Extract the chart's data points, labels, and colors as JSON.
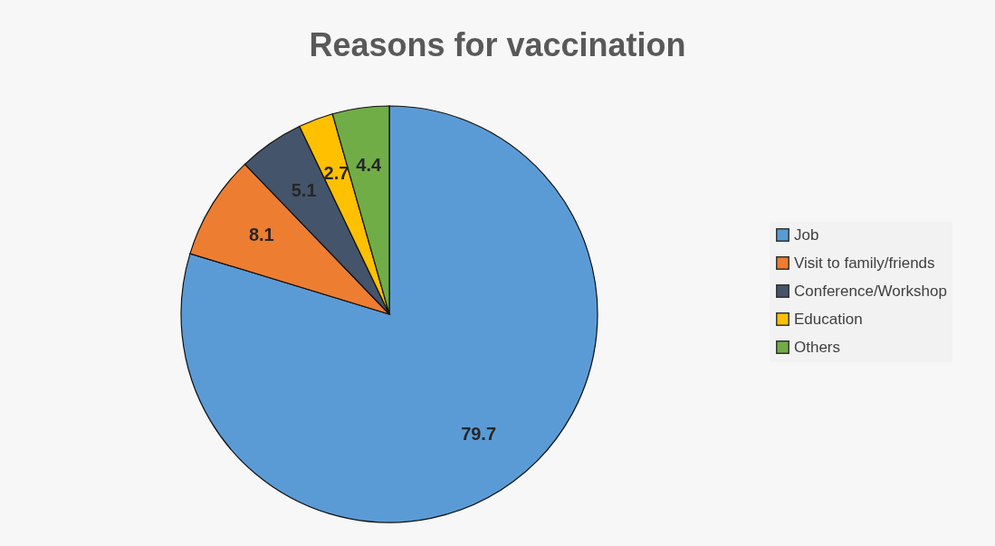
{
  "chart_data": {
    "type": "pie",
    "title": "Reasons for vaccination",
    "categories": [
      "Job",
      "Visit to family/friends",
      "Conference/Workshop",
      "Education",
      "Others"
    ],
    "values": [
      79.7,
      8.1,
      5.1,
      2.7,
      4.4
    ],
    "colors": [
      "#5b9bd5",
      "#ed7d31",
      "#44546a",
      "#ffc000",
      "#70ad47"
    ],
    "data_labels": true,
    "legend": "right"
  }
}
